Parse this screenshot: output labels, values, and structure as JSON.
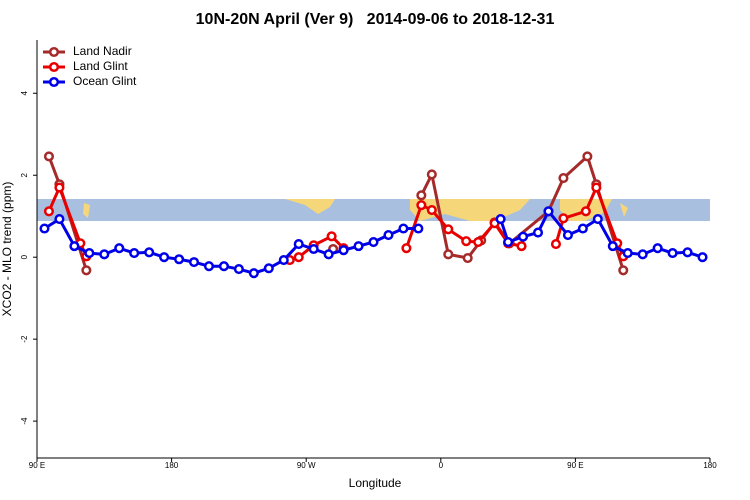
{
  "chart_data": {
    "type": "line",
    "title": "10N-20N April (Ver 9)   2014-09-06 to 2018-12-31",
    "xlabel": "Longitude",
    "ylabel": "XCO2 - MLO trend (ppm)",
    "xlim": [
      90,
      540
    ],
    "ylim": [
      -4.9,
      5.3
    ],
    "xticks": [
      {
        "value": 90,
        "label": "90 E"
      },
      {
        "value": 180,
        "label": "180"
      },
      {
        "value": 270,
        "label": "90 W"
      },
      {
        "value": 360,
        "label": "0"
      },
      {
        "value": 450,
        "label": "90 E"
      },
      {
        "value": 540,
        "label": "180"
      }
    ],
    "yticks": [
      -4,
      -2,
      0,
      2,
      4
    ],
    "legend": "top-left",
    "series": [
      {
        "name": "Land Nadir",
        "color": "#a52a2a",
        "x": [
          98,
          105,
          123,
          null,
          288,
          null,
          347,
          354,
          365,
          378,
          387,
          396,
          406,
          432,
          442,
          458,
          464,
          482
        ],
        "values": [
          2.46,
          1.78,
          -0.32,
          null,
          0.2,
          null,
          1.51,
          2.02,
          0.07,
          -0.02,
          0.41,
          0.85,
          0.34,
          1.12,
          1.93,
          2.46,
          1.78,
          -0.32
        ]
      },
      {
        "name": "Land Glint",
        "color": "#e80000",
        "x": [
          98,
          105,
          119,
          123,
          null,
          259,
          265,
          275,
          287,
          295,
          null,
          337,
          347,
          354,
          365,
          377,
          385,
          396,
          405,
          414,
          null,
          437,
          442,
          457,
          464,
          478,
          482
        ],
        "values": [
          1.12,
          1.7,
          0.34,
          0.02,
          null,
          -0.07,
          0,
          0.29,
          0.51,
          0.22,
          null,
          0.22,
          1.27,
          1.15,
          0.68,
          0.39,
          0.37,
          0.83,
          0.34,
          0.27,
          null,
          0.32,
          0.95,
          1.12,
          1.7,
          0.34,
          0.02
        ]
      },
      {
        "name": "Ocean Glint",
        "color": "#0000e8",
        "x": [
          95,
          105,
          115,
          125,
          135,
          145,
          155,
          165,
          175,
          185,
          195,
          205,
          215,
          225,
          235,
          245,
          255,
          265,
          275,
          285,
          295,
          305,
          315,
          325,
          335,
          345,
          null,
          400,
          405,
          415,
          425,
          432,
          445,
          455,
          465,
          475,
          485,
          495,
          505,
          515,
          525,
          535
        ],
        "values": [
          0.7,
          0.93,
          0.27,
          0.1,
          0.07,
          0.22,
          0.1,
          0.12,
          0,
          -0.05,
          -0.12,
          -0.22,
          -0.22,
          -0.29,
          -0.39,
          -0.27,
          -0.07,
          0.32,
          0.2,
          0.07,
          0.17,
          0.27,
          0.37,
          0.54,
          0.7,
          0.7,
          null,
          0.93,
          0.37,
          0.5,
          0.6,
          1.12,
          0.54,
          0.7,
          0.93,
          0.27,
          0.1,
          0.07,
          0.22,
          0.1,
          0.12,
          0
        ]
      }
    ]
  }
}
